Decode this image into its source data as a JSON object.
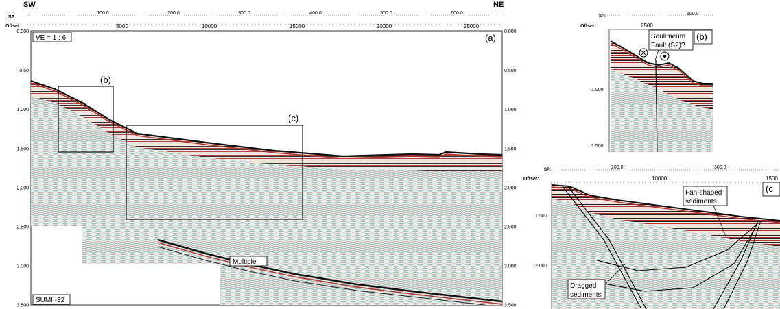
{
  "panel_a": {
    "dir_left": "SW",
    "dir_right": "NE",
    "sp_label": "SP:",
    "offset_label": "Offset:",
    "sp_ticks": [
      "100.0",
      "200.0",
      "300.0",
      "400.0",
      "500.0",
      "600.0"
    ],
    "offset_ticks": [
      "5000",
      "10000",
      "15000",
      "20000",
      "25000"
    ],
    "time_ticks": [
      "0.000",
      "0.50",
      "1.000",
      "1.500",
      "2.000",
      "2.500",
      "3.000",
      "3.500"
    ],
    "time_ticks_right": [
      "0.000",
      "0.500",
      "1.000",
      "1.500",
      "2.000",
      "2.500",
      "3.000",
      "3.500"
    ],
    "ve_label": "VE = 1 : 6",
    "panel_tag": "(a)",
    "box_b_tag": "(b)",
    "box_c_tag": "(c)",
    "multiple_label": "Multiple",
    "line_name": "SUMII-32"
  },
  "panel_b": {
    "sp_label": "SP:",
    "offset_label": "Offset:",
    "sp_tick": "100.0",
    "offset_tick": "2500",
    "time_ticks": [
      "1.000",
      "1.500"
    ],
    "fault_label_1": "Seulimeum",
    "fault_label_2": "Fault (S2)?",
    "panel_tag": "(b)"
  },
  "panel_c": {
    "sp_label": "SP:",
    "offset_label": "Offset:",
    "sp_ticks": [
      "200.0",
      "300.0"
    ],
    "offset_ticks": [
      "10000",
      "1500"
    ],
    "time_ticks": [
      "1.500",
      "2.000"
    ],
    "fan_label_1": "Fan-shaped",
    "fan_label_2": "sediments",
    "drag_label_1": "Dragged",
    "drag_label_2": "sediments",
    "panel_tag": "(c"
  },
  "colors": {
    "reflector_red": "#c0392b",
    "reflector_black": "#111111",
    "noise_teal": "#9fc7c1",
    "background": "#ffffff"
  }
}
